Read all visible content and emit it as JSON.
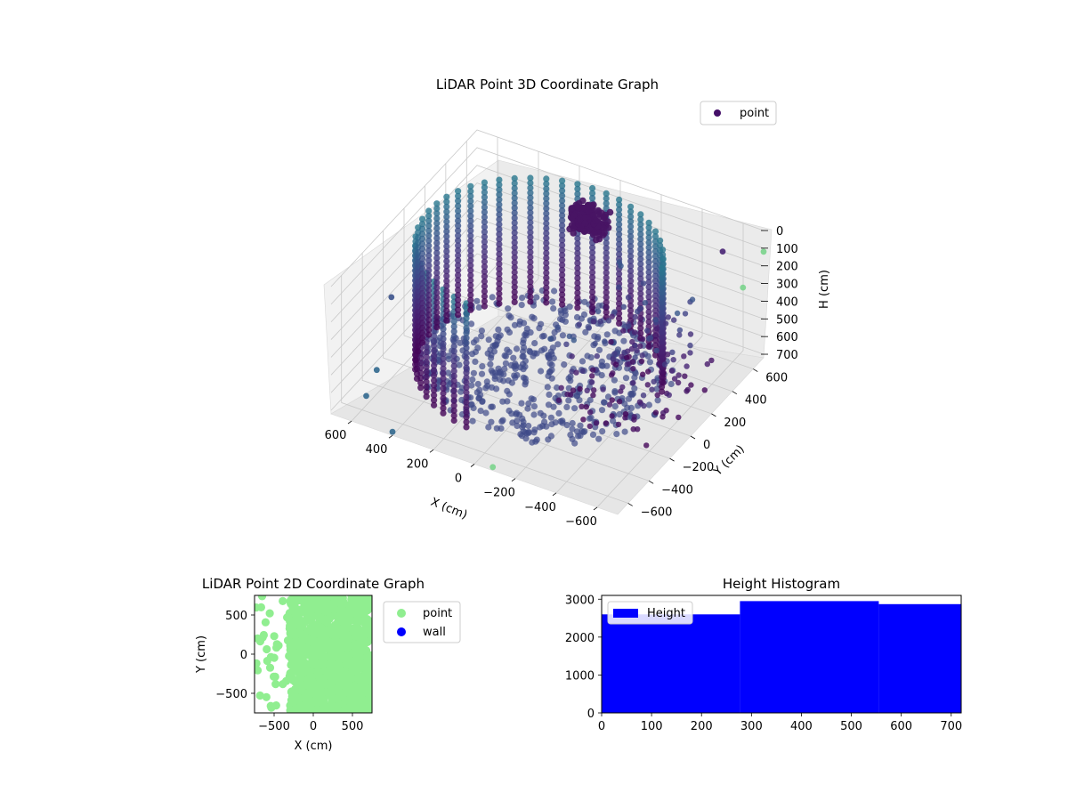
{
  "chart_data": [
    {
      "id": "lidar-3d",
      "type": "scatter",
      "projection": "3d",
      "title": "LiDAR Point 3D Coordinate Graph",
      "xlabel": "X (cm)",
      "ylabel": "Y (cm)",
      "zlabel": "H (cm)",
      "x_ticks": [
        "−600",
        "−400",
        "−200",
        "0",
        "200",
        "400",
        "600"
      ],
      "y_ticks": [
        "−600",
        "−400",
        "−200",
        "0",
        "200",
        "400",
        "600"
      ],
      "z_ticks": [
        "0",
        "100",
        "200",
        "300",
        "400",
        "500",
        "600",
        "700"
      ],
      "xlim": [
        -700,
        700
      ],
      "ylim": [
        -700,
        700
      ],
      "zlim": [
        0,
        720
      ],
      "z_inverted": true,
      "legend": {
        "entries": [
          "point"
        ],
        "placement": "top-right"
      },
      "colormap": "viridis",
      "colors": {
        "point_legend": "#440f68",
        "wall_dark": "#440154",
        "mid": "#3b528b",
        "teal": "#31688e",
        "stray_green": "#7ad48c"
      },
      "grid": true
    },
    {
      "id": "lidar-2d",
      "type": "scatter",
      "title": "LiDAR Point 2D Coordinate Graph",
      "xlabel": "X (cm)",
      "ylabel": "Y (cm)",
      "x_ticks": [
        "−500",
        "0",
        "500"
      ],
      "y_ticks": [
        "500",
        "0",
        "−500"
      ],
      "xlim": [
        -750,
        750
      ],
      "ylim": [
        -750,
        750
      ],
      "legend": {
        "entries": [
          "point",
          "wall"
        ],
        "placement": "outside-right"
      },
      "series": [
        {
          "name": "point",
          "color": "#90ee90"
        },
        {
          "name": "wall",
          "color": "#0000ff"
        }
      ]
    },
    {
      "id": "height-hist",
      "type": "bar",
      "title": "Height Histogram",
      "legend": {
        "entries": [
          "Height"
        ],
        "placement": "top-left"
      },
      "color": "#0000ff",
      "xlim": [
        0,
        720
      ],
      "ylim": [
        0,
        3100
      ],
      "x_ticks": [
        "0",
        "100",
        "200",
        "300",
        "400",
        "500",
        "600",
        "700"
      ],
      "y_ticks": [
        "0",
        "1000",
        "2000",
        "3000"
      ],
      "bins": [
        {
          "from": 0,
          "to": 277,
          "count": 2600
        },
        {
          "from": 277,
          "to": 555,
          "count": 2950
        },
        {
          "from": 555,
          "to": 720,
          "count": 2870
        }
      ]
    }
  ]
}
